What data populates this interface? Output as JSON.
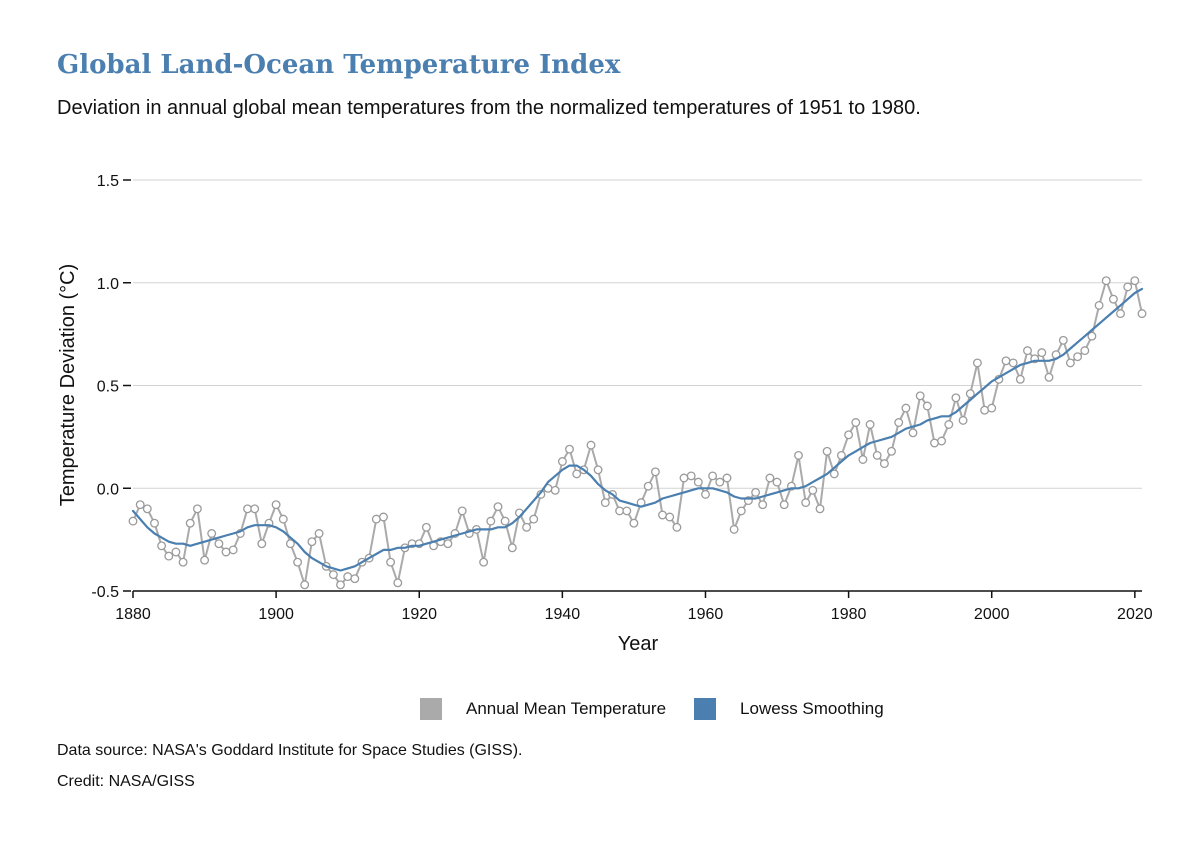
{
  "title": "Global Land-Ocean Temperature Index",
  "subtitle": "Deviation in annual global mean temperatures from the normalized temperatures of 1951 to 1980.",
  "source": "Data source: NASA's Goddard Institute for Space Studies (GISS).",
  "credit": "Credit: NASA/GISS",
  "colors": {
    "annual": "#aaaaaa",
    "smooth": "#4a7fb0",
    "title": "#4a7fb0",
    "grid": "#d3d3d3"
  },
  "chart_data": {
    "type": "line",
    "xlabel": "Year",
    "ylabel": "Temperature Deviation (°C)",
    "xlim": [
      1880,
      2021
    ],
    "ylim": [
      -0.5,
      1.5
    ],
    "xticks": [
      1880,
      1900,
      1920,
      1940,
      1960,
      1980,
      2000,
      2020
    ],
    "yticks": [
      -0.5,
      0.0,
      0.5,
      1.0,
      1.5
    ],
    "ytick_labels": [
      "-0.5",
      "0.0",
      "0.5",
      "1.0",
      "1.5"
    ],
    "grid": true,
    "legend_position": "bottom-center",
    "series": [
      {
        "name": "Annual Mean Temperature",
        "marker": "circle",
        "x_start": 1880,
        "values": [
          -0.16,
          -0.08,
          -0.1,
          -0.17,
          -0.28,
          -0.33,
          -0.31,
          -0.36,
          -0.17,
          -0.1,
          -0.35,
          -0.22,
          -0.27,
          -0.31,
          -0.3,
          -0.22,
          -0.1,
          -0.1,
          -0.27,
          -0.17,
          -0.08,
          -0.15,
          -0.27,
          -0.36,
          -0.47,
          -0.26,
          -0.22,
          -0.38,
          -0.42,
          -0.47,
          -0.43,
          -0.44,
          -0.36,
          -0.34,
          -0.15,
          -0.14,
          -0.36,
          -0.46,
          -0.29,
          -0.27,
          -0.27,
          -0.19,
          -0.28,
          -0.26,
          -0.27,
          -0.22,
          -0.11,
          -0.22,
          -0.2,
          -0.36,
          -0.16,
          -0.09,
          -0.16,
          -0.29,
          -0.12,
          -0.19,
          -0.15,
          -0.03,
          0.0,
          -0.01,
          0.13,
          0.19,
          0.07,
          0.09,
          0.21,
          0.09,
          -0.07,
          -0.03,
          -0.11,
          -0.11,
          -0.17,
          -0.07,
          0.01,
          0.08,
          -0.13,
          -0.14,
          -0.19,
          0.05,
          0.06,
          0.03,
          -0.03,
          0.06,
          0.03,
          0.05,
          -0.2,
          -0.11,
          -0.06,
          -0.02,
          -0.08,
          0.05,
          0.03,
          -0.08,
          0.01,
          0.16,
          -0.07,
          -0.01,
          -0.1,
          0.18,
          0.07,
          0.16,
          0.26,
          0.32,
          0.14,
          0.31,
          0.16,
          0.12,
          0.18,
          0.32,
          0.39,
          0.27,
          0.45,
          0.4,
          0.22,
          0.23,
          0.31,
          0.44,
          0.33,
          0.46,
          0.61,
          0.38,
          0.39,
          0.53,
          0.62,
          0.61,
          0.53,
          0.67,
          0.63,
          0.66,
          0.54,
          0.65,
          0.72,
          0.61,
          0.64,
          0.67,
          0.74,
          0.89,
          1.01,
          0.92,
          0.85,
          0.98,
          1.01,
          0.85
        ]
      },
      {
        "name": "Lowess Smoothing",
        "x_start": 1880,
        "values": [
          -0.11,
          -0.15,
          -0.19,
          -0.22,
          -0.24,
          -0.26,
          -0.27,
          -0.27,
          -0.28,
          -0.27,
          -0.26,
          -0.25,
          -0.24,
          -0.23,
          -0.22,
          -0.21,
          -0.19,
          -0.18,
          -0.18,
          -0.18,
          -0.19,
          -0.21,
          -0.24,
          -0.27,
          -0.31,
          -0.34,
          -0.36,
          -0.38,
          -0.39,
          -0.4,
          -0.39,
          -0.38,
          -0.36,
          -0.34,
          -0.32,
          -0.3,
          -0.3,
          -0.29,
          -0.29,
          -0.28,
          -0.28,
          -0.27,
          -0.26,
          -0.25,
          -0.24,
          -0.23,
          -0.22,
          -0.21,
          -0.2,
          -0.2,
          -0.2,
          -0.19,
          -0.19,
          -0.17,
          -0.14,
          -0.1,
          -0.06,
          -0.02,
          0.03,
          0.06,
          0.09,
          0.11,
          0.11,
          0.09,
          0.06,
          0.02,
          -0.01,
          -0.03,
          -0.06,
          -0.07,
          -0.08,
          -0.09,
          -0.08,
          -0.07,
          -0.05,
          -0.04,
          -0.03,
          -0.02,
          -0.01,
          0.0,
          0.0,
          0.0,
          -0.01,
          -0.02,
          -0.04,
          -0.05,
          -0.05,
          -0.05,
          -0.04,
          -0.03,
          -0.02,
          -0.01,
          0.0,
          0.0,
          0.01,
          0.03,
          0.05,
          0.07,
          0.1,
          0.13,
          0.16,
          0.18,
          0.2,
          0.22,
          0.23,
          0.24,
          0.25,
          0.27,
          0.29,
          0.3,
          0.31,
          0.33,
          0.34,
          0.35,
          0.35,
          0.37,
          0.4,
          0.43,
          0.46,
          0.49,
          0.52,
          0.54,
          0.56,
          0.58,
          0.6,
          0.61,
          0.62,
          0.62,
          0.62,
          0.63,
          0.65,
          0.68,
          0.71,
          0.74,
          0.77,
          0.8,
          0.83,
          0.86,
          0.89,
          0.92,
          0.95,
          0.97
        ]
      }
    ]
  }
}
